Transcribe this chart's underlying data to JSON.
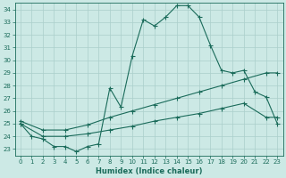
{
  "xlabel": "Humidex (Indice chaleur)",
  "xlim": [
    -0.5,
    23.5
  ],
  "ylim": [
    22.5,
    34.5
  ],
  "xticks": [
    0,
    1,
    2,
    3,
    4,
    5,
    6,
    7,
    8,
    9,
    10,
    11,
    12,
    13,
    14,
    15,
    16,
    17,
    18,
    19,
    20,
    21,
    22,
    23
  ],
  "yticks": [
    23,
    24,
    25,
    26,
    27,
    28,
    29,
    30,
    31,
    32,
    33,
    34
  ],
  "background_color": "#cce9e5",
  "grid_color": "#aacfcb",
  "line_color": "#1a6b5a",
  "line1_x": [
    0,
    1,
    2,
    3,
    4,
    5,
    6,
    7,
    8,
    9,
    10,
    11,
    12,
    13,
    14,
    15,
    16,
    17,
    18,
    19,
    20,
    21,
    22,
    23
  ],
  "line1_y": [
    25.0,
    24.0,
    23.8,
    23.2,
    23.2,
    22.8,
    23.2,
    23.4,
    27.8,
    26.3,
    30.3,
    33.2,
    32.7,
    33.4,
    34.3,
    34.3,
    33.4,
    31.2,
    29.2,
    29.0,
    29.2,
    27.5,
    27.1,
    25.0
  ],
  "line2_x": [
    0,
    2,
    4,
    6,
    8,
    10,
    12,
    14,
    16,
    18,
    20,
    22,
    23
  ],
  "line2_y": [
    25.2,
    24.5,
    24.5,
    24.9,
    25.5,
    26.0,
    26.5,
    27.0,
    27.5,
    28.0,
    28.5,
    29.0,
    29.0
  ],
  "line3_x": [
    0,
    2,
    4,
    6,
    8,
    10,
    12,
    14,
    16,
    18,
    20,
    22,
    23
  ],
  "line3_y": [
    25.0,
    24.0,
    24.0,
    24.2,
    24.5,
    24.8,
    25.2,
    25.5,
    25.8,
    26.2,
    26.6,
    25.5,
    25.5
  ]
}
